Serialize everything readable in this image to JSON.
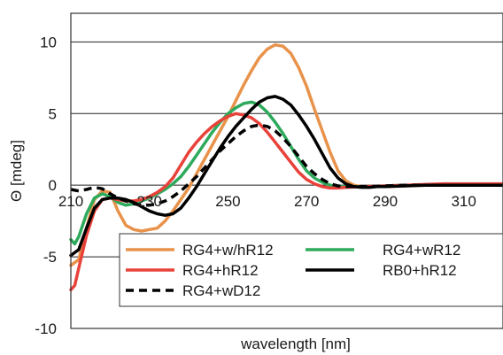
{
  "chart_data": {
    "type": "line",
    "xlabel": "wavelength [nm]",
    "ylabel": "Θ [mdeg]",
    "xlim": [
      210,
      320
    ],
    "ylim": [
      -10,
      12
    ],
    "x_ticks": [
      210,
      230,
      250,
      270,
      290,
      310
    ],
    "x_tick_labels": [
      "210",
      "230",
      "250",
      "270",
      "290",
      "310"
    ],
    "y_ticks": [
      -10,
      -5,
      0,
      5,
      10
    ],
    "y_tick_labels": [
      "-10",
      "-5",
      "0",
      "5",
      "10"
    ],
    "grid": "horizontal",
    "legend": "bottom",
    "series": [
      {
        "name": "RG4+w/hR12",
        "color": "#E8924A",
        "dash": "solid",
        "points": [
          [
            210,
            -5.6
          ],
          [
            212,
            -5.2
          ],
          [
            214,
            -3.0
          ],
          [
            216,
            -1.0
          ],
          [
            218,
            -0.4
          ],
          [
            220,
            -0.5
          ],
          [
            222,
            -1.8
          ],
          [
            224,
            -2.8
          ],
          [
            226,
            -3.1
          ],
          [
            228,
            -3.2
          ],
          [
            230,
            -3.1
          ],
          [
            232,
            -3.0
          ],
          [
            234,
            -2.5
          ],
          [
            236,
            -1.8
          ],
          [
            238,
            -1.0
          ],
          [
            240,
            -0.2
          ],
          [
            242,
            0.8
          ],
          [
            244,
            1.8
          ],
          [
            246,
            2.8
          ],
          [
            248,
            3.8
          ],
          [
            250,
            4.8
          ],
          [
            252,
            5.9
          ],
          [
            254,
            7.0
          ],
          [
            256,
            8.0
          ],
          [
            258,
            8.9
          ],
          [
            260,
            9.5
          ],
          [
            262,
            9.8
          ],
          [
            264,
            9.7
          ],
          [
            266,
            9.2
          ],
          [
            268,
            8.2
          ],
          [
            270,
            6.9
          ],
          [
            272,
            5.3
          ],
          [
            274,
            3.8
          ],
          [
            276,
            2.3
          ],
          [
            278,
            1.0
          ],
          [
            280,
            0.3
          ],
          [
            282,
            0.0
          ],
          [
            284,
            -0.1
          ],
          [
            286,
            -0.1
          ],
          [
            288,
            -0.1
          ],
          [
            290,
            -0.1
          ],
          [
            295,
            -0.05
          ],
          [
            300,
            0.0
          ],
          [
            305,
            0.0
          ],
          [
            310,
            0.0
          ],
          [
            315,
            0.0
          ],
          [
            320,
            0.0
          ]
        ]
      },
      {
        "name": "RG4+wR12",
        "color": "#2EAA5C",
        "dash": "solid",
        "points": [
          [
            210,
            -3.8
          ],
          [
            211,
            -4.1
          ],
          [
            212,
            -3.6
          ],
          [
            214,
            -2.0
          ],
          [
            216,
            -0.9
          ],
          [
            218,
            -0.6
          ],
          [
            220,
            -0.8
          ],
          [
            222,
            -1.2
          ],
          [
            224,
            -1.4
          ],
          [
            226,
            -1.3
          ],
          [
            228,
            -1.1
          ],
          [
            230,
            -0.9
          ],
          [
            232,
            -0.6
          ],
          [
            234,
            -0.3
          ],
          [
            236,
            0.1
          ],
          [
            238,
            0.6
          ],
          [
            240,
            1.3
          ],
          [
            242,
            2.1
          ],
          [
            244,
            2.9
          ],
          [
            246,
            3.7
          ],
          [
            248,
            4.4
          ],
          [
            250,
            5.0
          ],
          [
            252,
            5.4
          ],
          [
            254,
            5.7
          ],
          [
            256,
            5.8
          ],
          [
            258,
            5.6
          ],
          [
            260,
            5.1
          ],
          [
            262,
            4.4
          ],
          [
            264,
            3.6
          ],
          [
            266,
            2.7
          ],
          [
            268,
            1.8
          ],
          [
            270,
            1.0
          ],
          [
            272,
            0.5
          ],
          [
            274,
            0.2
          ],
          [
            276,
            0.0
          ],
          [
            278,
            -0.1
          ],
          [
            280,
            -0.1
          ],
          [
            285,
            -0.1
          ],
          [
            290,
            -0.05
          ],
          [
            295,
            0.0
          ],
          [
            300,
            0.0
          ],
          [
            305,
            0.0
          ],
          [
            310,
            0.0
          ],
          [
            315,
            0.0
          ],
          [
            320,
            0.0
          ]
        ]
      },
      {
        "name": "RG4+hR12",
        "color": "#E8423A",
        "dash": "solid",
        "points": [
          [
            210,
            -7.3
          ],
          [
            211,
            -7.0
          ],
          [
            212,
            -5.8
          ],
          [
            214,
            -3.5
          ],
          [
            216,
            -1.8
          ],
          [
            218,
            -1.0
          ],
          [
            220,
            -0.9
          ],
          [
            222,
            -1.0
          ],
          [
            224,
            -1.1
          ],
          [
            226,
            -1.1
          ],
          [
            228,
            -1.0
          ],
          [
            230,
            -0.8
          ],
          [
            232,
            -0.5
          ],
          [
            234,
            -0.1
          ],
          [
            236,
            0.5
          ],
          [
            238,
            1.4
          ],
          [
            240,
            2.3
          ],
          [
            242,
            3.0
          ],
          [
            244,
            3.6
          ],
          [
            246,
            4.1
          ],
          [
            248,
            4.5
          ],
          [
            250,
            4.8
          ],
          [
            252,
            5.0
          ],
          [
            254,
            4.9
          ],
          [
            256,
            4.7
          ],
          [
            258,
            4.3
          ],
          [
            260,
            3.7
          ],
          [
            262,
            3.0
          ],
          [
            264,
            2.3
          ],
          [
            266,
            1.6
          ],
          [
            268,
            0.9
          ],
          [
            270,
            0.4
          ],
          [
            272,
            0.1
          ],
          [
            274,
            -0.1
          ],
          [
            276,
            -0.2
          ],
          [
            278,
            -0.2
          ],
          [
            280,
            -0.15
          ],
          [
            285,
            -0.1
          ],
          [
            290,
            -0.05
          ],
          [
            295,
            0.0
          ],
          [
            300,
            0.05
          ],
          [
            305,
            0.1
          ],
          [
            310,
            0.1
          ],
          [
            315,
            0.1
          ],
          [
            320,
            0.1
          ]
        ]
      },
      {
        "name": "RB0+hR12",
        "color": "#000000",
        "dash": "solid",
        "points": [
          [
            210,
            -4.9
          ],
          [
            212,
            -4.5
          ],
          [
            214,
            -3.0
          ],
          [
            216,
            -1.6
          ],
          [
            218,
            -1.0
          ],
          [
            220,
            -0.9
          ],
          [
            222,
            -0.9
          ],
          [
            224,
            -1.0
          ],
          [
            226,
            -1.2
          ],
          [
            228,
            -1.5
          ],
          [
            230,
            -1.8
          ],
          [
            232,
            -2.0
          ],
          [
            234,
            -2.1
          ],
          [
            236,
            -2.0
          ],
          [
            238,
            -1.6
          ],
          [
            240,
            -0.9
          ],
          [
            242,
            -0.1
          ],
          [
            244,
            0.8
          ],
          [
            246,
            1.7
          ],
          [
            248,
            2.6
          ],
          [
            250,
            3.4
          ],
          [
            252,
            4.1
          ],
          [
            254,
            4.7
          ],
          [
            256,
            5.3
          ],
          [
            258,
            5.8
          ],
          [
            260,
            6.1
          ],
          [
            262,
            6.2
          ],
          [
            264,
            6.0
          ],
          [
            266,
            5.6
          ],
          [
            268,
            4.9
          ],
          [
            270,
            4.1
          ],
          [
            272,
            3.2
          ],
          [
            274,
            2.2
          ],
          [
            276,
            1.2
          ],
          [
            278,
            0.5
          ],
          [
            280,
            0.1
          ],
          [
            282,
            -0.1
          ],
          [
            284,
            -0.15
          ],
          [
            286,
            -0.15
          ],
          [
            288,
            -0.1
          ],
          [
            290,
            -0.1
          ],
          [
            295,
            -0.05
          ],
          [
            300,
            0.0
          ],
          [
            305,
            0.0
          ],
          [
            310,
            0.0
          ],
          [
            315,
            0.0
          ],
          [
            320,
            0.0
          ]
        ]
      },
      {
        "name": "RG4+wD12",
        "color": "#000000",
        "dash": "dashed",
        "points": [
          [
            210,
            -0.3
          ],
          [
            212,
            -0.4
          ],
          [
            214,
            -0.3
          ],
          [
            216,
            -0.15
          ],
          [
            218,
            -0.25
          ],
          [
            220,
            -0.6
          ],
          [
            222,
            -0.9
          ],
          [
            224,
            -1.1
          ],
          [
            226,
            -1.3
          ],
          [
            228,
            -1.4
          ],
          [
            230,
            -1.4
          ],
          [
            232,
            -1.3
          ],
          [
            234,
            -1.1
          ],
          [
            236,
            -0.8
          ],
          [
            238,
            -0.4
          ],
          [
            240,
            0.1
          ],
          [
            242,
            0.6
          ],
          [
            244,
            1.2
          ],
          [
            246,
            1.8
          ],
          [
            248,
            2.4
          ],
          [
            250,
            2.9
          ],
          [
            252,
            3.4
          ],
          [
            254,
            3.8
          ],
          [
            256,
            4.1
          ],
          [
            258,
            4.2
          ],
          [
            260,
            4.1
          ],
          [
            262,
            3.8
          ],
          [
            264,
            3.3
          ],
          [
            266,
            2.7
          ],
          [
            268,
            2.0
          ],
          [
            270,
            1.3
          ],
          [
            272,
            0.8
          ],
          [
            274,
            0.4
          ],
          [
            276,
            0.1
          ],
          [
            278,
            -0.05
          ],
          [
            280,
            -0.1
          ],
          [
            285,
            -0.1
          ],
          [
            290,
            -0.05
          ],
          [
            295,
            0.0
          ],
          [
            300,
            0.0
          ],
          [
            305,
            0.0
          ],
          [
            310,
            0.0
          ],
          [
            315,
            0.0
          ],
          [
            320,
            0.0
          ]
        ]
      }
    ]
  }
}
